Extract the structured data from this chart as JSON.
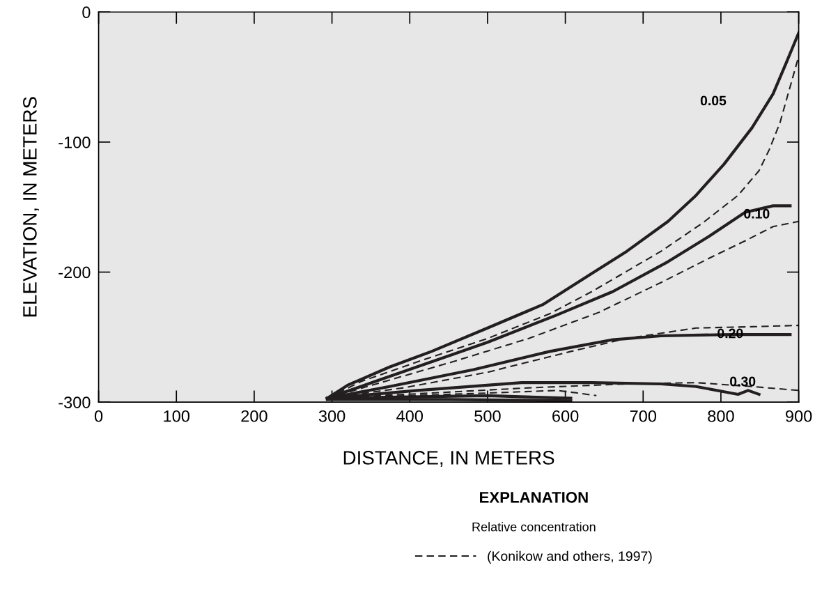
{
  "chart_data": {
    "type": "line",
    "xlabel": "DISTANCE, IN METERS",
    "ylabel": "ELEVATION, IN METERS",
    "xlim": [
      0,
      900
    ],
    "ylim": [
      -300,
      0
    ],
    "xticks": [
      0,
      100,
      200,
      300,
      400,
      500,
      600,
      700,
      800,
      900
    ],
    "yticks": [
      -300,
      -200,
      -100,
      0
    ],
    "grid": false,
    "legend": "bottom",
    "legend_title": "EXPLANATION",
    "marker": "none",
    "series": [
      {
        "color": "#231f20",
        "line_style": "solid",
        "x": [
          294,
          320,
          374,
          428,
          500,
          571,
          634,
          679,
          732,
          768,
          804,
          840,
          867,
          884,
          900
        ],
        "values": [
          -297,
          -287,
          -273,
          -261,
          -243,
          -225,
          -201,
          -184,
          -161,
          -141,
          -117,
          -89,
          -63,
          -39,
          -16
        ]
      },
      {
        "color": "#231f20",
        "line_style": "dashed",
        "name": "(Konikow and others, 1997)",
        "x": [
          294,
          338,
          410,
          500,
          580,
          634,
          723,
          777,
          822,
          849,
          862,
          876,
          900
        ],
        "values": [
          -297,
          -284,
          -269,
          -251,
          -232,
          -215,
          -184,
          -162,
          -141,
          -122,
          -106,
          -85,
          -34
        ]
      },
      {
        "color": "#231f20",
        "line_style": "solid",
        "x": [
          294,
          356,
          428,
          500,
          589,
          661,
          732,
          786,
          831,
          867,
          889
        ],
        "values": [
          -297,
          -284,
          -269,
          -254,
          -233,
          -215,
          -192,
          -172,
          -154,
          -149,
          -149
        ]
      },
      {
        "color": "#231f20",
        "line_style": "dashed",
        "x": [
          294,
          374,
          455,
          553,
          643,
          723,
          786,
          831,
          867,
          900
        ],
        "values": [
          -297,
          -283,
          -269,
          -251,
          -231,
          -208,
          -189,
          -176,
          -165,
          -161
        ]
      },
      {
        "color": "#231f20",
        "line_style": "solid",
        "x": [
          294,
          374,
          482,
          580,
          661,
          723,
          813,
          889
        ],
        "values": [
          -297,
          -288,
          -275,
          -261,
          -252,
          -249,
          -248,
          -248
        ]
      },
      {
        "color": "#231f20",
        "line_style": "dashed",
        "x": [
          294,
          392,
          500,
          607,
          679,
          768,
          840,
          900
        ],
        "values": [
          -297,
          -289,
          -277,
          -261,
          -251,
          -243,
          -242,
          -241
        ]
      },
      {
        "color": "#231f20",
        "line_style": "solid",
        "x": [
          294,
          410,
          544,
          634,
          723,
          768,
          804,
          822,
          835,
          849
        ],
        "values": [
          -297,
          -291,
          -285,
          -285,
          -286,
          -288,
          -292,
          -294,
          -291,
          -294
        ]
      },
      {
        "color": "#231f20",
        "line_style": "dashed",
        "x": [
          294,
          428,
          553,
          679,
          768,
          840,
          900
        ],
        "values": [
          -297,
          -293,
          -289,
          -286,
          -285,
          -288,
          -291
        ]
      },
      {
        "color": "#231f20",
        "line_style": "solid",
        "x": [
          294,
          500,
          550,
          607
        ],
        "values": [
          -297,
          -295,
          -296,
          -297
        ]
      },
      {
        "color": "#231f20",
        "line_style": "solid",
        "x": [
          294,
          450,
          607
        ],
        "values": [
          -298,
          -298,
          -299
        ]
      },
      {
        "color": "#231f20",
        "line_style": "dashed",
        "x": [
          294,
          400,
          500,
          589,
          616,
          640
        ],
        "values": [
          -297,
          -295,
          -293,
          -291,
          -293,
          -295
        ]
      }
    ],
    "annotations": [
      "0.05",
      "0.10",
      {
        "text": "0.20",
        "x": 812,
        "y": -248
      },
      {
        "text": "0.30",
        "x": 828,
        "y": -285
      },
      "Relative concentration"
    ]
  }
}
